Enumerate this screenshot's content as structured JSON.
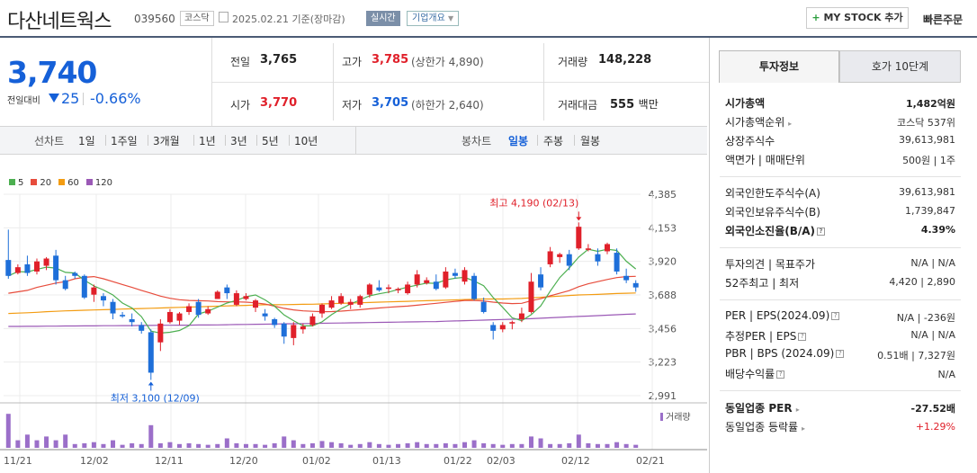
{
  "header": {
    "name": "다산네트웍스",
    "code": "039560",
    "market_tag": "코스닥",
    "date": "2025.02.21",
    "basis": "기준(장마감)",
    "live_tag": "실시간",
    "overview_tag": "기업개요",
    "mystock": "MY STOCK 추가",
    "quick_order": "빠른주문"
  },
  "quote": {
    "price": "3,740",
    "change_label": "전일대비",
    "change": "25",
    "change_pct": "-0.66%",
    "prev_label": "전일",
    "prev": "3,765",
    "open_label": "시가",
    "open": "3,770",
    "high_label": "고가",
    "high": "3,785",
    "upper_limit": "(상한가 4,890)",
    "low_label": "저가",
    "low": "3,705",
    "lower_limit": "(하한가 2,640)",
    "volume_label": "거래량",
    "volume": "148,228",
    "amount_label": "거래대금",
    "amount": "555",
    "amount_unit": "백만"
  },
  "chart_tabs": {
    "line_label": "선차트",
    "line_periods": [
      "1일",
      "1주일",
      "3개월",
      "1년",
      "3년",
      "5년",
      "10년"
    ],
    "candle_label": "봉차트",
    "candle_periods": [
      "일봉",
      "주봉",
      "월봉"
    ],
    "selected": "일봉"
  },
  "legend": {
    "ma": [
      "5",
      "20",
      "60",
      "120"
    ],
    "colors": {
      "ma5": "#4caf50",
      "ma20": "#e74c3c",
      "ma60": "#f39c12",
      "ma120": "#9b59b6",
      "up": "#e0202a",
      "down": "#1e6fd9",
      "volume": "#9b6fc9"
    }
  },
  "chart_data": {
    "type": "candlestick",
    "y_ticks": [
      "4,385",
      "4,153",
      "3,920",
      "3,688",
      "3,456",
      "3,223",
      "2,991"
    ],
    "ylim": [
      2991,
      4385
    ],
    "x_ticks": [
      "11/21",
      "12/02",
      "12/11",
      "12/20",
      "01/02",
      "01/13",
      "01/22",
      "02/03",
      "02/12",
      "02/21"
    ],
    "max_label": "최고 4,190 (02/13)",
    "min_label": "최저 3,100 (12/09)",
    "volume_label": "거래량",
    "candles": [
      {
        "o": 3930,
        "h": 4140,
        "l": 3800,
        "c": 3820
      },
      {
        "o": 3840,
        "h": 3900,
        "l": 3830,
        "c": 3880
      },
      {
        "o": 3900,
        "h": 3960,
        "l": 3820,
        "c": 3840
      },
      {
        "o": 3850,
        "h": 3940,
        "l": 3830,
        "c": 3920
      },
      {
        "o": 3890,
        "h": 3950,
        "l": 3860,
        "c": 3940
      },
      {
        "o": 3960,
        "h": 4000,
        "l": 3760,
        "c": 3790
      },
      {
        "o": 3790,
        "h": 3820,
        "l": 3720,
        "c": 3730
      },
      {
        "o": 3840,
        "h": 3850,
        "l": 3800,
        "c": 3820
      },
      {
        "o": 3820,
        "h": 3830,
        "l": 3660,
        "c": 3670
      },
      {
        "o": 3690,
        "h": 3760,
        "l": 3640,
        "c": 3740
      },
      {
        "o": 3680,
        "h": 3700,
        "l": 3610,
        "c": 3650
      },
      {
        "o": 3640,
        "h": 3660,
        "l": 3520,
        "c": 3560
      },
      {
        "o": 3550,
        "h": 3570,
        "l": 3530,
        "c": 3540
      },
      {
        "o": 3520,
        "h": 3560,
        "l": 3470,
        "c": 3500
      },
      {
        "o": 3480,
        "h": 3500,
        "l": 3420,
        "c": 3440
      },
      {
        "o": 3430,
        "h": 3450,
        "l": 3100,
        "c": 3150
      },
      {
        "o": 3360,
        "h": 3520,
        "l": 3300,
        "c": 3490
      },
      {
        "o": 3500,
        "h": 3590,
        "l": 3490,
        "c": 3570
      },
      {
        "o": 3510,
        "h": 3570,
        "l": 3480,
        "c": 3560
      },
      {
        "o": 3570,
        "h": 3630,
        "l": 3550,
        "c": 3610
      },
      {
        "o": 3640,
        "h": 3660,
        "l": 3530,
        "c": 3550
      },
      {
        "o": 3560,
        "h": 3610,
        "l": 3550,
        "c": 3590
      },
      {
        "o": 3660,
        "h": 3720,
        "l": 3660,
        "c": 3710
      },
      {
        "o": 3740,
        "h": 3760,
        "l": 3660,
        "c": 3700
      },
      {
        "o": 3620,
        "h": 3720,
        "l": 3610,
        "c": 3700
      },
      {
        "o": 3660,
        "h": 3700,
        "l": 3650,
        "c": 3680
      },
      {
        "o": 3600,
        "h": 3660,
        "l": 3570,
        "c": 3650
      },
      {
        "o": 3560,
        "h": 3590,
        "l": 3510,
        "c": 3540
      },
      {
        "o": 3520,
        "h": 3530,
        "l": 3460,
        "c": 3480
      },
      {
        "o": 3490,
        "h": 3500,
        "l": 3350,
        "c": 3400
      },
      {
        "o": 3390,
        "h": 3500,
        "l": 3340,
        "c": 3480
      },
      {
        "o": 3450,
        "h": 3490,
        "l": 3420,
        "c": 3470
      },
      {
        "o": 3480,
        "h": 3560,
        "l": 3470,
        "c": 3540
      },
      {
        "o": 3560,
        "h": 3630,
        "l": 3530,
        "c": 3620
      },
      {
        "o": 3600,
        "h": 3680,
        "l": 3590,
        "c": 3650
      },
      {
        "o": 3630,
        "h": 3700,
        "l": 3620,
        "c": 3680
      },
      {
        "o": 3620,
        "h": 3660,
        "l": 3590,
        "c": 3640
      },
      {
        "o": 3620,
        "h": 3690,
        "l": 3600,
        "c": 3680
      },
      {
        "o": 3690,
        "h": 3770,
        "l": 3670,
        "c": 3760
      },
      {
        "o": 3740,
        "h": 3790,
        "l": 3710,
        "c": 3720
      },
      {
        "o": 3730,
        "h": 3760,
        "l": 3700,
        "c": 3740
      },
      {
        "o": 3720,
        "h": 3740,
        "l": 3700,
        "c": 3730
      },
      {
        "o": 3700,
        "h": 3780,
        "l": 3690,
        "c": 3760
      },
      {
        "o": 3760,
        "h": 3860,
        "l": 3740,
        "c": 3830
      },
      {
        "o": 3770,
        "h": 3810,
        "l": 3760,
        "c": 3790
      },
      {
        "o": 3780,
        "h": 3830,
        "l": 3720,
        "c": 3730
      },
      {
        "o": 3740,
        "h": 3880,
        "l": 3730,
        "c": 3850
      },
      {
        "o": 3840,
        "h": 3870,
        "l": 3800,
        "c": 3820
      },
      {
        "o": 3780,
        "h": 3880,
        "l": 3760,
        "c": 3860
      },
      {
        "o": 3820,
        "h": 3840,
        "l": 3650,
        "c": 3660
      },
      {
        "o": 3640,
        "h": 3670,
        "l": 3560,
        "c": 3570
      },
      {
        "o": 3480,
        "h": 3500,
        "l": 3380,
        "c": 3440
      },
      {
        "o": 3450,
        "h": 3500,
        "l": 3430,
        "c": 3480
      },
      {
        "o": 3490,
        "h": 3510,
        "l": 3450,
        "c": 3500
      },
      {
        "o": 3520,
        "h": 3600,
        "l": 3500,
        "c": 3560
      },
      {
        "o": 3570,
        "h": 3840,
        "l": 3560,
        "c": 3780
      },
      {
        "o": 3830,
        "h": 3880,
        "l": 3720,
        "c": 3740
      },
      {
        "o": 3900,
        "h": 4020,
        "l": 3880,
        "c": 3990
      },
      {
        "o": 3950,
        "h": 3980,
        "l": 3910,
        "c": 3970
      },
      {
        "o": 3970,
        "h": 4000,
        "l": 3860,
        "c": 3890
      },
      {
        "o": 4010,
        "h": 4190,
        "l": 4000,
        "c": 4160
      },
      {
        "o": 4000,
        "h": 4040,
        "l": 3990,
        "c": 4010
      },
      {
        "o": 3970,
        "h": 4010,
        "l": 3890,
        "c": 3920
      },
      {
        "o": 3990,
        "h": 4050,
        "l": 3970,
        "c": 4040
      },
      {
        "o": 3980,
        "h": 4010,
        "l": 3830,
        "c": 3850
      },
      {
        "o": 3820,
        "h": 3870,
        "l": 3770,
        "c": 3790
      },
      {
        "o": 3770,
        "h": 3790,
        "l": 3710,
        "c": 3740
      }
    ],
    "volumes": [
      0.9,
      0.2,
      0.35,
      0.2,
      0.3,
      0.2,
      0.35,
      0.1,
      0.12,
      0.15,
      0.1,
      0.2,
      0.08,
      0.12,
      0.1,
      0.6,
      0.12,
      0.15,
      0.1,
      0.12,
      0.1,
      0.08,
      0.1,
      0.25,
      0.12,
      0.1,
      0.1,
      0.08,
      0.12,
      0.3,
      0.2,
      0.1,
      0.12,
      0.18,
      0.15,
      0.12,
      0.08,
      0.1,
      0.15,
      0.1,
      0.08,
      0.1,
      0.12,
      0.15,
      0.1,
      0.1,
      0.12,
      0.1,
      0.15,
      0.2,
      0.12,
      0.1,
      0.08,
      0.1,
      0.1,
      0.3,
      0.25,
      0.1,
      0.1,
      0.12,
      0.35,
      0.12,
      0.1,
      0.1,
      0.15,
      0.1,
      0.08
    ],
    "ma20": [
      3700,
      3710,
      3720,
      3740,
      3755,
      3770,
      3780,
      3800,
      3810,
      3815,
      3800,
      3780,
      3760,
      3740,
      3720,
      3700,
      3680,
      3665,
      3655,
      3650,
      3648,
      3646,
      3642,
      3640,
      3640,
      3638,
      3633,
      3625,
      3610,
      3595,
      3585,
      3578,
      3575,
      3572,
      3573,
      3576,
      3581,
      3586,
      3592,
      3598,
      3603,
      3607,
      3611,
      3617,
      3624,
      3630,
      3637,
      3643,
      3650,
      3650,
      3646,
      3638,
      3632,
      3628,
      3630,
      3648,
      3662,
      3682,
      3700,
      3718,
      3745,
      3765,
      3780,
      3795,
      3808,
      3815,
      3817
    ],
    "ma60": [
      3560,
      3562,
      3565,
      3568,
      3572,
      3575,
      3578,
      3580,
      3582,
      3584,
      3586,
      3588,
      3590,
      3592,
      3594,
      3596,
      3598,
      3600,
      3602,
      3604,
      3606,
      3608,
      3610,
      3612,
      3614,
      3616,
      3618,
      3620,
      3620,
      3621,
      3622,
      3623,
      3624,
      3626,
      3628,
      3630,
      3632,
      3634,
      3636,
      3638,
      3640,
      3642,
      3644,
      3646,
      3648,
      3650,
      3652,
      3654,
      3656,
      3658,
      3660,
      3660,
      3660,
      3662,
      3664,
      3668,
      3672,
      3676,
      3680,
      3684,
      3688,
      3690,
      3692,
      3695,
      3698,
      3700,
      3702
    ],
    "ma120": [
      3470,
      3470,
      3471,
      3471,
      3472,
      3472,
      3473,
      3473,
      3474,
      3474,
      3475,
      3475,
      3476,
      3476,
      3477,
      3477,
      3478,
      3478,
      3479,
      3479,
      3480,
      3480,
      3481,
      3482,
      3483,
      3484,
      3485,
      3486,
      3487,
      3488,
      3489,
      3490,
      3491,
      3492,
      3493,
      3494,
      3495,
      3496,
      3497,
      3498,
      3499,
      3500,
      3501,
      3502,
      3503,
      3504,
      3506,
      3508,
      3510,
      3512,
      3514,
      3516,
      3518,
      3520,
      3522,
      3524,
      3527,
      3530,
      3533,
      3536,
      3539,
      3542,
      3545,
      3548,
      3551,
      3554,
      3557
    ]
  },
  "info": {
    "tab_invest": "투자정보",
    "tab_hoga": "호가 10단계",
    "market_cap_label": "시가총액",
    "market_cap": "1,482억원",
    "cap_rank_label": "시가총액순위",
    "cap_rank": "코스닥 537위",
    "shares_label": "상장주식수",
    "shares": "39,613,981",
    "par_label": "액면가 | 매매단위",
    "par": "500원 | 1주",
    "foreign_limit_label": "외국인한도주식수(A)",
    "foreign_limit": "39,613,981",
    "foreign_hold_label": "외국인보유주식수(B)",
    "foreign_hold": "1,739,847",
    "foreign_ratio_label": "외국인소진율(B/A)",
    "foreign_ratio": "4.39%",
    "opinion_label": "투자의견 | 목표주가",
    "opinion": "N/A | N/A",
    "w52_label": "52주최고 | 최저",
    "w52": "4,420 | 2,890",
    "per_label": "PER | EPS(2024.09)",
    "per": "N/A | -236원",
    "est_per_label": "추정PER | EPS",
    "est_per": "N/A | N/A",
    "pbr_label": "PBR | BPS (2024.09)",
    "pbr": "0.51배 | 7,327원",
    "div_label": "배당수익률",
    "div": "N/A",
    "sector_per_label": "동일업종 PER",
    "sector_per": "-27.52배",
    "sector_rate_label": "동일업종 등락률",
    "sector_rate": "+1.29%"
  }
}
